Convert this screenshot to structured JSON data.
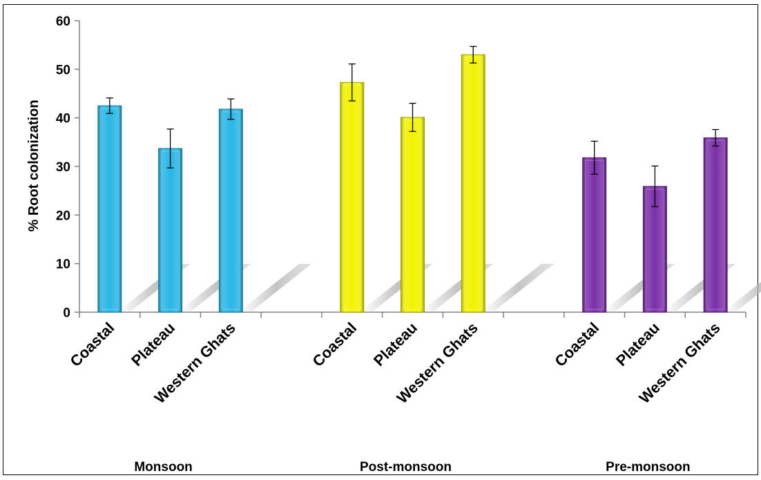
{
  "chart_data": {
    "type": "bar",
    "ylabel": "% Root colonization",
    "xlabel": "",
    "ylim": [
      0,
      60
    ],
    "yticks": [
      0,
      10,
      20,
      30,
      40,
      50,
      60
    ],
    "grid": false,
    "legend": "none",
    "groups": [
      {
        "name": "Monsoon",
        "color": "#29B6E6",
        "categories": [
          "Coastal",
          "Plateau",
          "Western Ghats"
        ],
        "values": [
          42.5,
          33.7,
          41.8
        ],
        "errors": [
          1.6,
          4.0,
          2.1
        ]
      },
      {
        "name": "Post-monsoon",
        "color": "#F2F200",
        "categories": [
          "Coastal",
          "Plateau",
          "Western Ghats"
        ],
        "values": [
          47.3,
          40.1,
          53.0
        ],
        "errors": [
          3.8,
          2.9,
          1.7
        ]
      },
      {
        "name": "Pre-monsoon",
        "color": "#7B2FA8",
        "categories": [
          "Coastal",
          "Plateau",
          "Western Ghats"
        ],
        "values": [
          31.8,
          25.9,
          35.9
        ],
        "errors": [
          3.4,
          4.2,
          1.7
        ]
      }
    ]
  }
}
